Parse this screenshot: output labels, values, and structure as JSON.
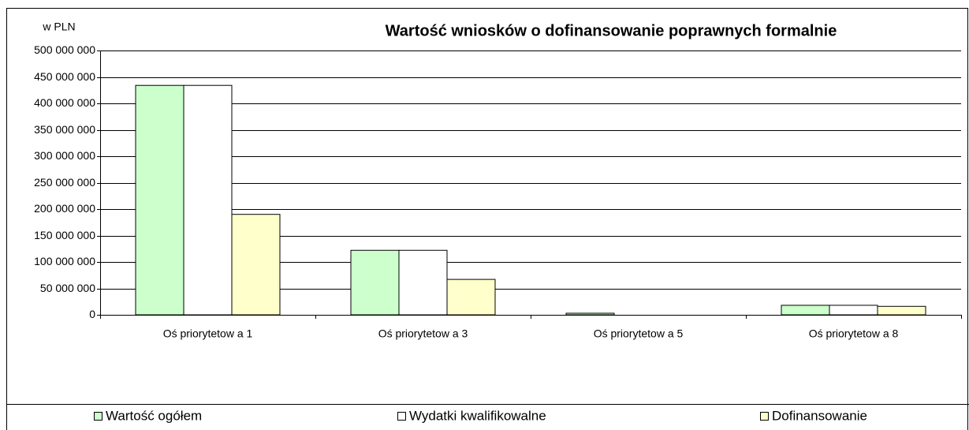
{
  "chart_data": {
    "type": "bar",
    "title": "Wartość wniosków o dofinansowanie poprawnych formalnie",
    "y_label": "w PLN",
    "categories": [
      "Oś priorytetow a 1",
      "Oś priorytetow a 3",
      "Oś priorytetow a 5",
      "Oś priorytetow a 8"
    ],
    "series": [
      {
        "name": "Wartość ogółem",
        "color": "#ccffcc",
        "values": [
          434000000,
          122000000,
          3000000,
          18000000
        ]
      },
      {
        "name": "Wydatki kwalifikowalne",
        "color": "#ffffff",
        "values": [
          434000000,
          122000000,
          0,
          18000000
        ]
      },
      {
        "name": "Dofinansowanie",
        "color": "#ffffcc",
        "values": [
          190000000,
          67000000,
          0,
          16000000
        ]
      }
    ],
    "ylim": [
      0,
      500000000
    ],
    "yticks": [
      0,
      {
        "value": 50000000,
        "label": "50 000 000"
      },
      {
        "value": 100000000,
        "label": "100 000 000"
      },
      {
        "value": 150000000,
        "label": "150 000 000"
      },
      {
        "value": 200000000,
        "label": "200 000 000"
      },
      {
        "value": 250000000,
        "label": "250 000 000"
      },
      {
        "value": 300000000,
        "label": "300 000 000"
      },
      {
        "value": 350000000,
        "label": "350 000 000"
      },
      {
        "value": 400000000,
        "label": "400 000 000"
      },
      {
        "value": 450000000,
        "label": "450 000 000"
      },
      {
        "value": 500000000,
        "label": "500 000 000"
      }
    ],
    "grid": true,
    "legend": "bottom"
  }
}
